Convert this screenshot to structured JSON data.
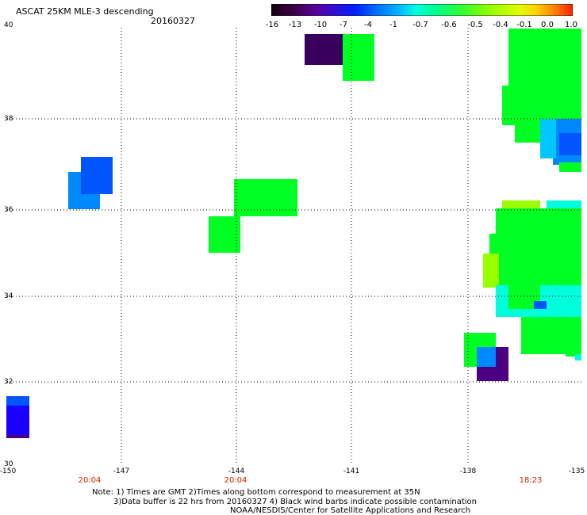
{
  "header": {
    "title": "ASCAT 25KM MLE-3 descending",
    "date": "20160327"
  },
  "colorbar": {
    "labels": [
      "-16",
      "-13",
      "-10",
      "-7",
      "-4",
      "-1",
      "-0.7",
      "-0.6",
      "-0.5",
      "-0.4",
      "-0.1",
      "0.0",
      "1.0"
    ],
    "colors": [
      "#150010",
      "#3a0040",
      "#5a00a0",
      "#2a10d8",
      "#0020ff",
      "#0070ff",
      "#00b0ff",
      "#00ffe0",
      "#00ff88",
      "#30ff30",
      "#90ff00",
      "#e0ff00",
      "#ffd000",
      "#ff8000",
      "#ff2000"
    ]
  },
  "axes": {
    "lat_labels": [
      "40",
      "38",
      "36",
      "34",
      "32",
      "30"
    ],
    "lon_labels": [
      "-150",
      "-147",
      "-144",
      "-141",
      "-138",
      "-135"
    ],
    "time_labels": [
      "20:04",
      "20:04",
      "18:23"
    ]
  },
  "footer": {
    "note1": "Note: 1) Times are GMT 2)Times along bottom correspond to measurement at 35N",
    "note2": "3)Data buffer is 22 hrs from 20160327 4) Black wind barbs indicate possible contamination",
    "credit": "NOAA/NESDIS/Center for Satellite Applications and Research"
  },
  "legend_colors": {
    "blue": "#0055ff",
    "deep_blue": "#1a00ff",
    "light_blue": "#0088ff",
    "green": "#00ff22",
    "yellow_green": "#99ff00",
    "cyan": "#00ffdd",
    "purple": "#4a0080",
    "dark_purple": "#3a0060"
  }
}
